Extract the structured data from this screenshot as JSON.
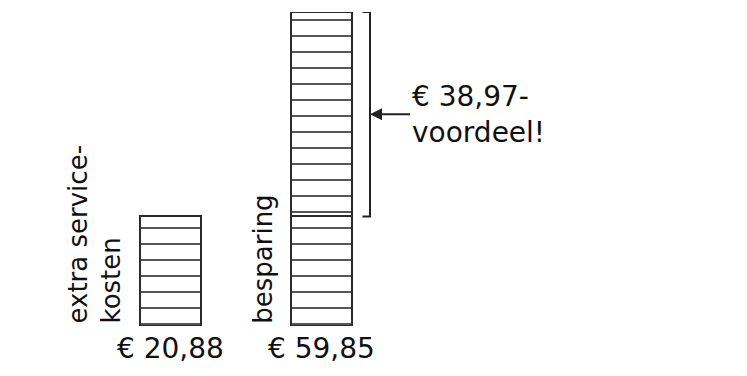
{
  "chart_data": {
    "type": "bar",
    "stacked": true,
    "tick_labels": false,
    "grid": false,
    "categories": [
      "extra service-kosten",
      "besparing"
    ],
    "series": [
      {
        "color": "#a9a58e",
        "values": [
          20.88,
          20.88
        ]
      },
      {
        "color": "#5b9bd5",
        "values": [
          null,
          38.97
        ],
        "value_labels": [
          null,
          "€ 38,97-voordeel!"
        ]
      }
    ],
    "total_labels": [
      "€ 20,88",
      "€ 59,85"
    ],
    "ylim": [
      0,
      59.85
    ]
  }
}
